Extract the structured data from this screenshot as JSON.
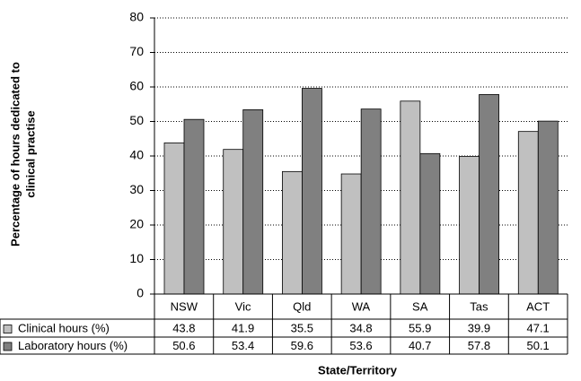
{
  "chart_data": {
    "type": "bar",
    "ylabel": [
      "Percentage of hours dedicated to",
      "clinical practise"
    ],
    "xlabel": "State/Territory",
    "categories": [
      "NSW",
      "Vic",
      "Qld",
      "WA",
      "SA",
      "Tas",
      "ACT"
    ],
    "series": [
      {
        "name": "Clinical hours (%)",
        "color": "#c0c0c0",
        "values": [
          43.8,
          41.9,
          35.5,
          34.8,
          55.9,
          39.9,
          47.1
        ]
      },
      {
        "name": "Laboratory hours (%)",
        "color": "#808080",
        "values": [
          50.6,
          53.4,
          59.6,
          53.6,
          40.7,
          57.8,
          50.1
        ]
      }
    ],
    "ylim": [
      0,
      80
    ],
    "yticks": [
      0,
      10,
      20,
      30,
      40,
      50,
      60,
      70,
      80
    ],
    "grid": true
  }
}
